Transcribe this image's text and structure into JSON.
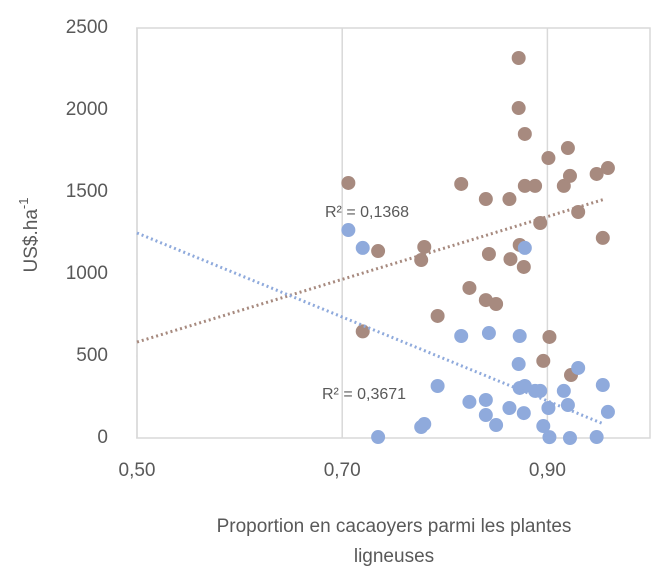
{
  "chart_data": {
    "type": "scatter",
    "ylabel": "US$.ha",
    "ylabel_sup": "-1",
    "xlabel": [
      "Proportion en cacaoyers parmi les plantes",
      "ligneuses"
    ],
    "xlim": [
      0.5,
      1.0
    ],
    "ylim": [
      0,
      2500
    ],
    "xticks": [
      {
        "value": 0.5,
        "label": "0,50"
      },
      {
        "value": 0.7,
        "label": "0,70"
      },
      {
        "value": 0.9,
        "label": "0,90"
      }
    ],
    "yticks": [
      0,
      500,
      1000,
      1500,
      2000,
      2500
    ],
    "grid": true,
    "series": [
      {
        "color": "#a78a7f",
        "x": [
          0.706,
          0.72,
          0.735,
          0.777,
          0.78,
          0.793,
          0.816,
          0.824,
          0.84,
          0.84,
          0.843,
          0.85,
          0.863,
          0.864,
          0.872,
          0.872,
          0.873,
          0.877,
          0.878,
          0.878,
          0.888,
          0.893,
          0.896,
          0.901,
          0.902,
          0.916,
          0.92,
          0.922,
          0.923,
          0.93,
          0.948,
          0.954,
          0.959
        ],
        "values": [
          1555,
          650,
          1140,
          1085,
          1165,
          744,
          1549,
          915,
          1457,
          841,
          1122,
          817,
          1457,
          1091,
          2317,
          2012,
          1177,
          1043,
          1854,
          1537,
          1537,
          1311,
          470,
          1707,
          616,
          1537,
          1768,
          1598,
          384,
          1378,
          1610,
          1220,
          1646
        ],
        "trendline": {
          "x": [
            0.5,
            0.955
          ],
          "values": [
            585,
            1455
          ]
        },
        "r2_label": "R² = 0,1368"
      },
      {
        "color": "#8faadc",
        "x": [
          0.706,
          0.72,
          0.735,
          0.777,
          0.78,
          0.793,
          0.816,
          0.824,
          0.84,
          0.84,
          0.843,
          0.85,
          0.863,
          0.872,
          0.873,
          0.873,
          0.877,
          0.878,
          0.878,
          0.888,
          0.893,
          0.896,
          0.901,
          0.902,
          0.916,
          0.92,
          0.922,
          0.93,
          0.948,
          0.954,
          0.959
        ],
        "values": [
          1268,
          1159,
          6,
          67,
          85,
          317,
          622,
          220,
          232,
          140,
          640,
          79,
          183,
          451,
          622,
          305,
          152,
          1159,
          317,
          287,
          287,
          73,
          183,
          5,
          287,
          201,
          0,
          427,
          6,
          323,
          159
        ],
        "trendline": {
          "x": [
            0.5,
            0.955
          ],
          "values": [
            1250,
            85
          ]
        },
        "r2_label": "R² = 0,3671"
      }
    ]
  }
}
